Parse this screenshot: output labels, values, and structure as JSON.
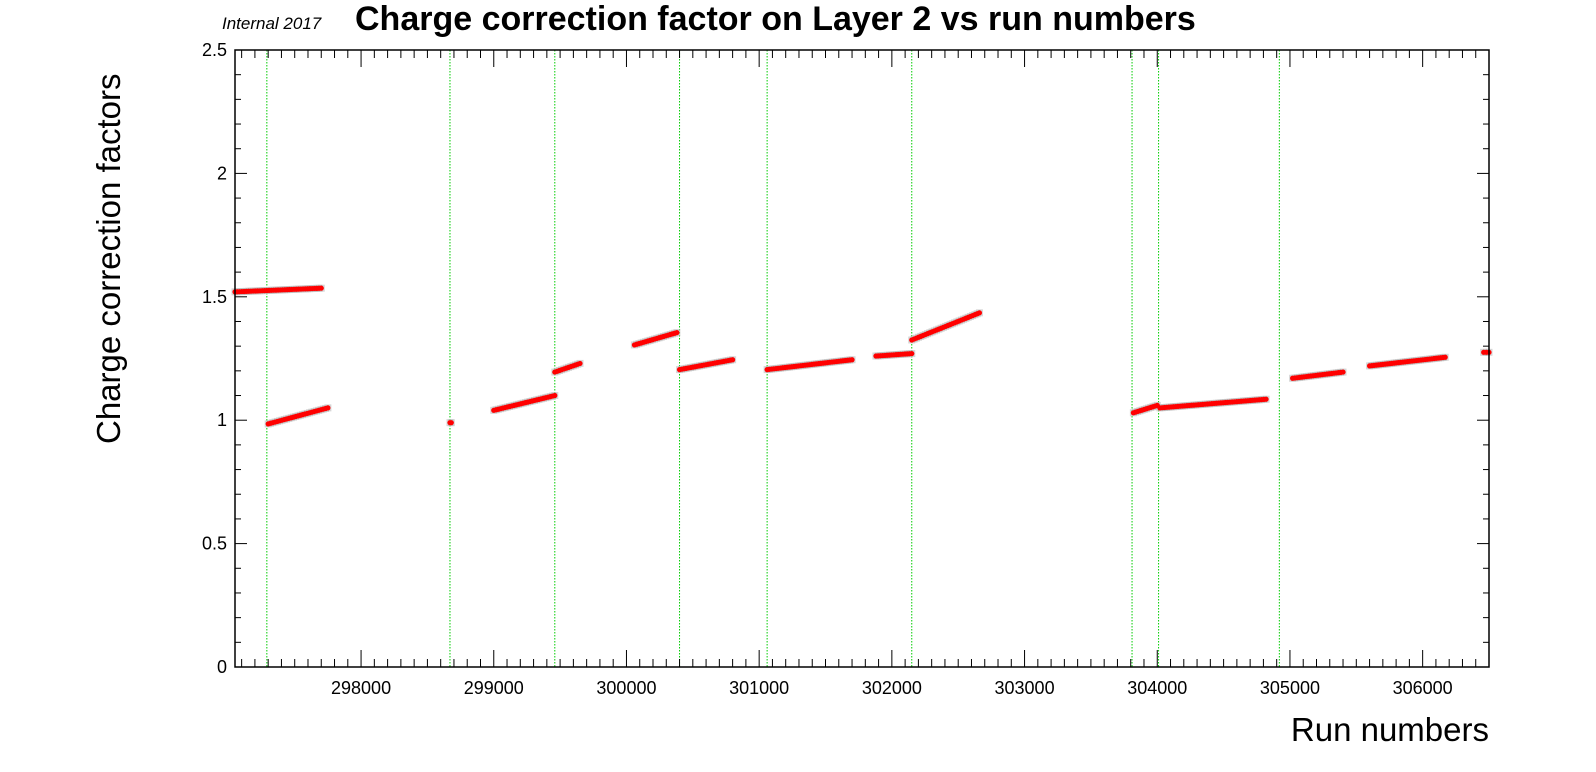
{
  "chart_data": {
    "type": "scatter",
    "title": "Charge correction factor on Layer 2 vs run numbers",
    "tag": "Internal 2017",
    "xlabel": "Run numbers",
    "ylabel": "Charge correction factors",
    "xlim": [
      297050,
      306500
    ],
    "ylim": [
      0,
      2.5
    ],
    "x_ticks": [
      298000,
      299000,
      300000,
      301000,
      302000,
      303000,
      304000,
      305000,
      306000
    ],
    "y_ticks": [
      0,
      0.5,
      1,
      1.5,
      2,
      2.5
    ],
    "y_tick_labels": [
      "0",
      "0.5",
      "1",
      "1.5",
      "2",
      "2.5"
    ],
    "grid": false,
    "colors": {
      "points": "#ff0000",
      "error_band": "#bbbbbb",
      "boundaries": "#00cc00"
    },
    "boundary_lines": [
      297290,
      298670,
      299460,
      300400,
      301060,
      302150,
      303810,
      304010,
      304920
    ],
    "series": [
      {
        "x": [
          297050,
          297700
        ],
        "y": [
          1.52,
          1.535
        ]
      },
      {
        "x": [
          297300,
          297750
        ],
        "y": [
          0.985,
          1.05
        ]
      },
      {
        "x": [
          298670,
          298680
        ],
        "y": [
          0.99,
          0.99
        ]
      },
      {
        "x": [
          299000,
          299460
        ],
        "y": [
          1.04,
          1.1
        ]
      },
      {
        "x": [
          299460,
          299650
        ],
        "y": [
          1.195,
          1.23
        ]
      },
      {
        "x": [
          300060,
          300380
        ],
        "y": [
          1.305,
          1.355
        ]
      },
      {
        "x": [
          300400,
          300800
        ],
        "y": [
          1.205,
          1.245
        ]
      },
      {
        "x": [
          301060,
          301700
        ],
        "y": [
          1.205,
          1.245
        ]
      },
      {
        "x": [
          301880,
          302150
        ],
        "y": [
          1.26,
          1.27
        ]
      },
      {
        "x": [
          302150,
          302660
        ],
        "y": [
          1.325,
          1.435
        ]
      },
      {
        "x": [
          303820,
          304000
        ],
        "y": [
          1.03,
          1.06
        ]
      },
      {
        "x": [
          304020,
          304820
        ],
        "y": [
          1.05,
          1.085
        ]
      },
      {
        "x": [
          305020,
          305400
        ],
        "y": [
          1.17,
          1.195
        ]
      },
      {
        "x": [
          305600,
          306170
        ],
        "y": [
          1.22,
          1.255
        ]
      },
      {
        "x": [
          306460,
          306500
        ],
        "y": [
          1.275,
          1.275
        ]
      }
    ]
  }
}
